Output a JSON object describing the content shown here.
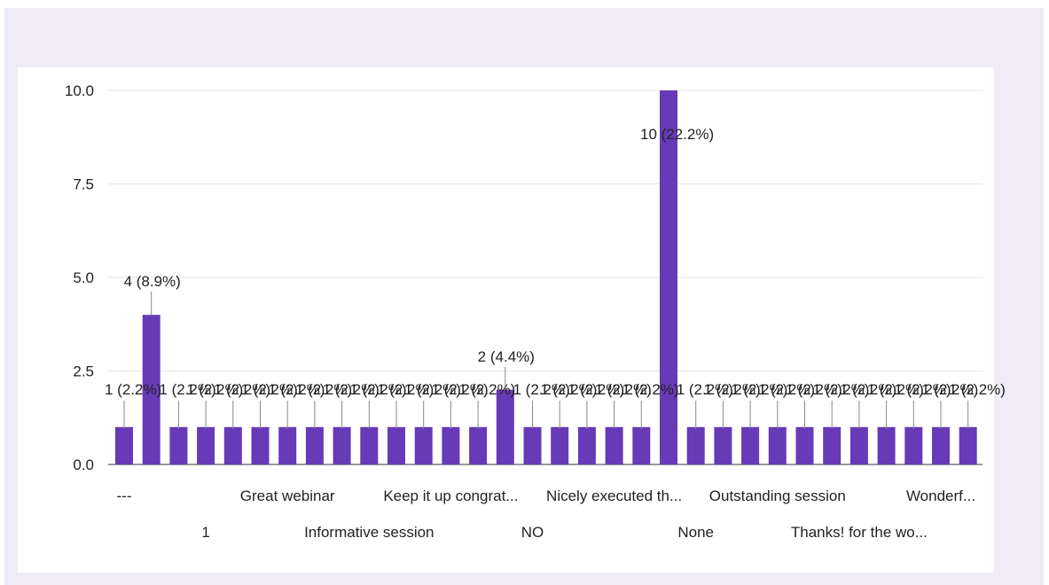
{
  "chart_data": {
    "type": "bar",
    "ylim": [
      0,
      10
    ],
    "yticks": [
      "0.0",
      "2.5",
      "5.0",
      "7.5",
      "10.0"
    ],
    "bar_color": "#673ab7",
    "grid": true,
    "values": [
      1,
      4,
      1,
      1,
      1,
      1,
      1,
      1,
      1,
      1,
      1,
      1,
      1,
      1,
      2,
      1,
      1,
      1,
      1,
      1,
      10,
      1,
      1,
      1,
      1,
      1,
      1,
      1,
      1,
      1,
      1,
      1
    ],
    "data_labels": [
      "1 (2.2%)",
      "4 (8.9%)",
      "1 (2.2%)",
      "1 (2.2%)",
      "1 (2.2%)",
      "1 (2.2%)",
      "1 (2.2%)",
      "1 (2.2%)",
      "1 (2.2%)",
      "1 (2.2%)",
      "1 (2.2%)",
      "1 (2.2%)",
      "1 (2.2%)",
      "1 (2.2%)",
      "2 (4.4%)",
      "1 (2.2%)",
      "1 (2.2%)",
      "1 (2.2%)",
      "1 (2.2%)",
      "1 (2.2%)",
      "10 (22.2%)",
      "1 (2.2%)",
      "1 (2.2%)",
      "1 (2.2%)",
      "1 (2.2%)",
      "1 (2.2%)",
      "1 (2.2%)",
      "1 (2.2%)",
      "1 (2.2%)",
      "1 (2.2%)",
      "1 (2.2%)",
      "1 (2.2%)"
    ],
    "x_labels": [
      {
        "index": 0,
        "row": 0,
        "text": "---"
      },
      {
        "index": 3,
        "row": 1,
        "text": "1"
      },
      {
        "index": 6,
        "row": 0,
        "text": "Great webinar"
      },
      {
        "index": 9,
        "row": 1,
        "text": "Informative session"
      },
      {
        "index": 12,
        "row": 0,
        "text": "Keep it up congrat..."
      },
      {
        "index": 15,
        "row": 1,
        "text": "NO"
      },
      {
        "index": 18,
        "row": 0,
        "text": "Nicely executed th..."
      },
      {
        "index": 21,
        "row": 1,
        "text": "None"
      },
      {
        "index": 24,
        "row": 0,
        "text": "Outstanding session"
      },
      {
        "index": 27,
        "row": 1,
        "text": "Thanks! for the wo..."
      },
      {
        "index": 30,
        "row": 0,
        "text": "Wonderf..."
      }
    ]
  }
}
